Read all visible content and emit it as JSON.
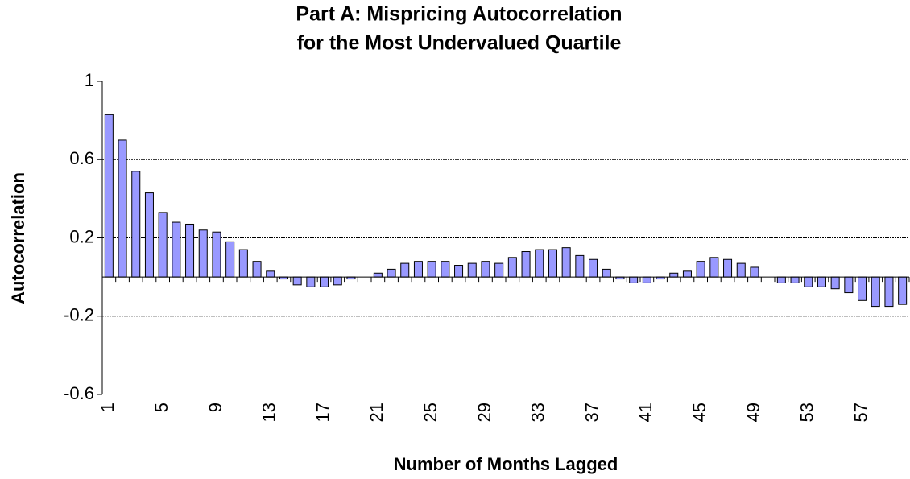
{
  "chart_data": {
    "type": "bar",
    "title": [
      "Part A: Mispricing Autocorrelation",
      "for the Most Undervalued Quartile"
    ],
    "x_label": "Number of Months Lagged",
    "y_label": "Autocorrelation",
    "categories": [
      1,
      null,
      null,
      null,
      5,
      null,
      null,
      null,
      9,
      null,
      null,
      null,
      13,
      null,
      null,
      null,
      17,
      null,
      null,
      null,
      21,
      null,
      null,
      null,
      25,
      null,
      null,
      null,
      29,
      null,
      null,
      null,
      33,
      null,
      null,
      null,
      37,
      null,
      null,
      null,
      41,
      null,
      null,
      null,
      45,
      null,
      null,
      null,
      49,
      null,
      null,
      null,
      53,
      null,
      null,
      null,
      57,
      null,
      null,
      null
    ],
    "values": [
      0.83,
      0.7,
      0.54,
      0.43,
      0.33,
      0.28,
      0.27,
      0.24,
      0.23,
      0.18,
      0.14,
      0.08,
      0.03,
      -0.01,
      -0.04,
      -0.05,
      -0.05,
      -0.04,
      -0.01,
      0,
      0.02,
      0.04,
      0.07,
      0.08,
      0.08,
      0.08,
      0.06,
      0.07,
      0.08,
      0.07,
      0.1,
      0.13,
      0.14,
      0.14,
      0.15,
      0.11,
      0.09,
      0.04,
      -0.01,
      -0.03,
      -0.03,
      -0.01,
      0.02,
      0.03,
      0.08,
      0.1,
      0.09,
      0.07,
      0.05,
      0,
      -0.03,
      -0.03,
      -0.05,
      -0.05,
      -0.06,
      -0.08,
      -0.12,
      -0.15,
      -0.15,
      -0.14
    ],
    "color": "#9999ff",
    "ylim": [
      -0.6,
      1
    ],
    "yticks": [
      -0.6,
      -0.2,
      0.2,
      0.6,
      1
    ],
    "grid": true
  }
}
